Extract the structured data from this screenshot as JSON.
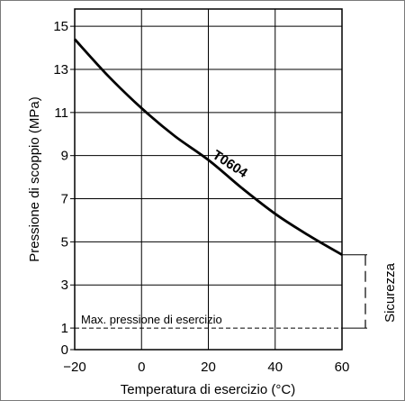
{
  "chart_data": {
    "type": "line",
    "xlabel": "Temperatura di esercizio (°C)",
    "ylabel": "Pressione di scoppio (MPa)",
    "xlim": [
      -20,
      60
    ],
    "ylim": [
      0,
      15.8
    ],
    "x_ticks": [
      -20,
      0,
      20,
      40,
      60
    ],
    "x_tick_labels": [
      "−20",
      "0",
      "20",
      "40",
      "60"
    ],
    "y_ticks": [
      0,
      1,
      3,
      5,
      7,
      9,
      11,
      13,
      15
    ],
    "y_tick_labels": [
      "0",
      "1",
      "3",
      "5",
      "7",
      "9",
      "11",
      "13",
      "15"
    ],
    "grid": true,
    "series": [
      {
        "name": "T0604",
        "x": [
          -20,
          -10,
          0,
          10,
          20,
          30,
          40,
          50,
          60
        ],
        "y": [
          14.4,
          12.7,
          11.2,
          9.9,
          8.8,
          7.5,
          6.3,
          5.3,
          4.4
        ],
        "color": "#000000"
      }
    ],
    "annotations": {
      "max_pressure": {
        "label": "Max. pressione di esercizio",
        "value": 1
      },
      "safety": {
        "label": "Sicurezza",
        "from": 1,
        "to": 4.4
      }
    }
  }
}
